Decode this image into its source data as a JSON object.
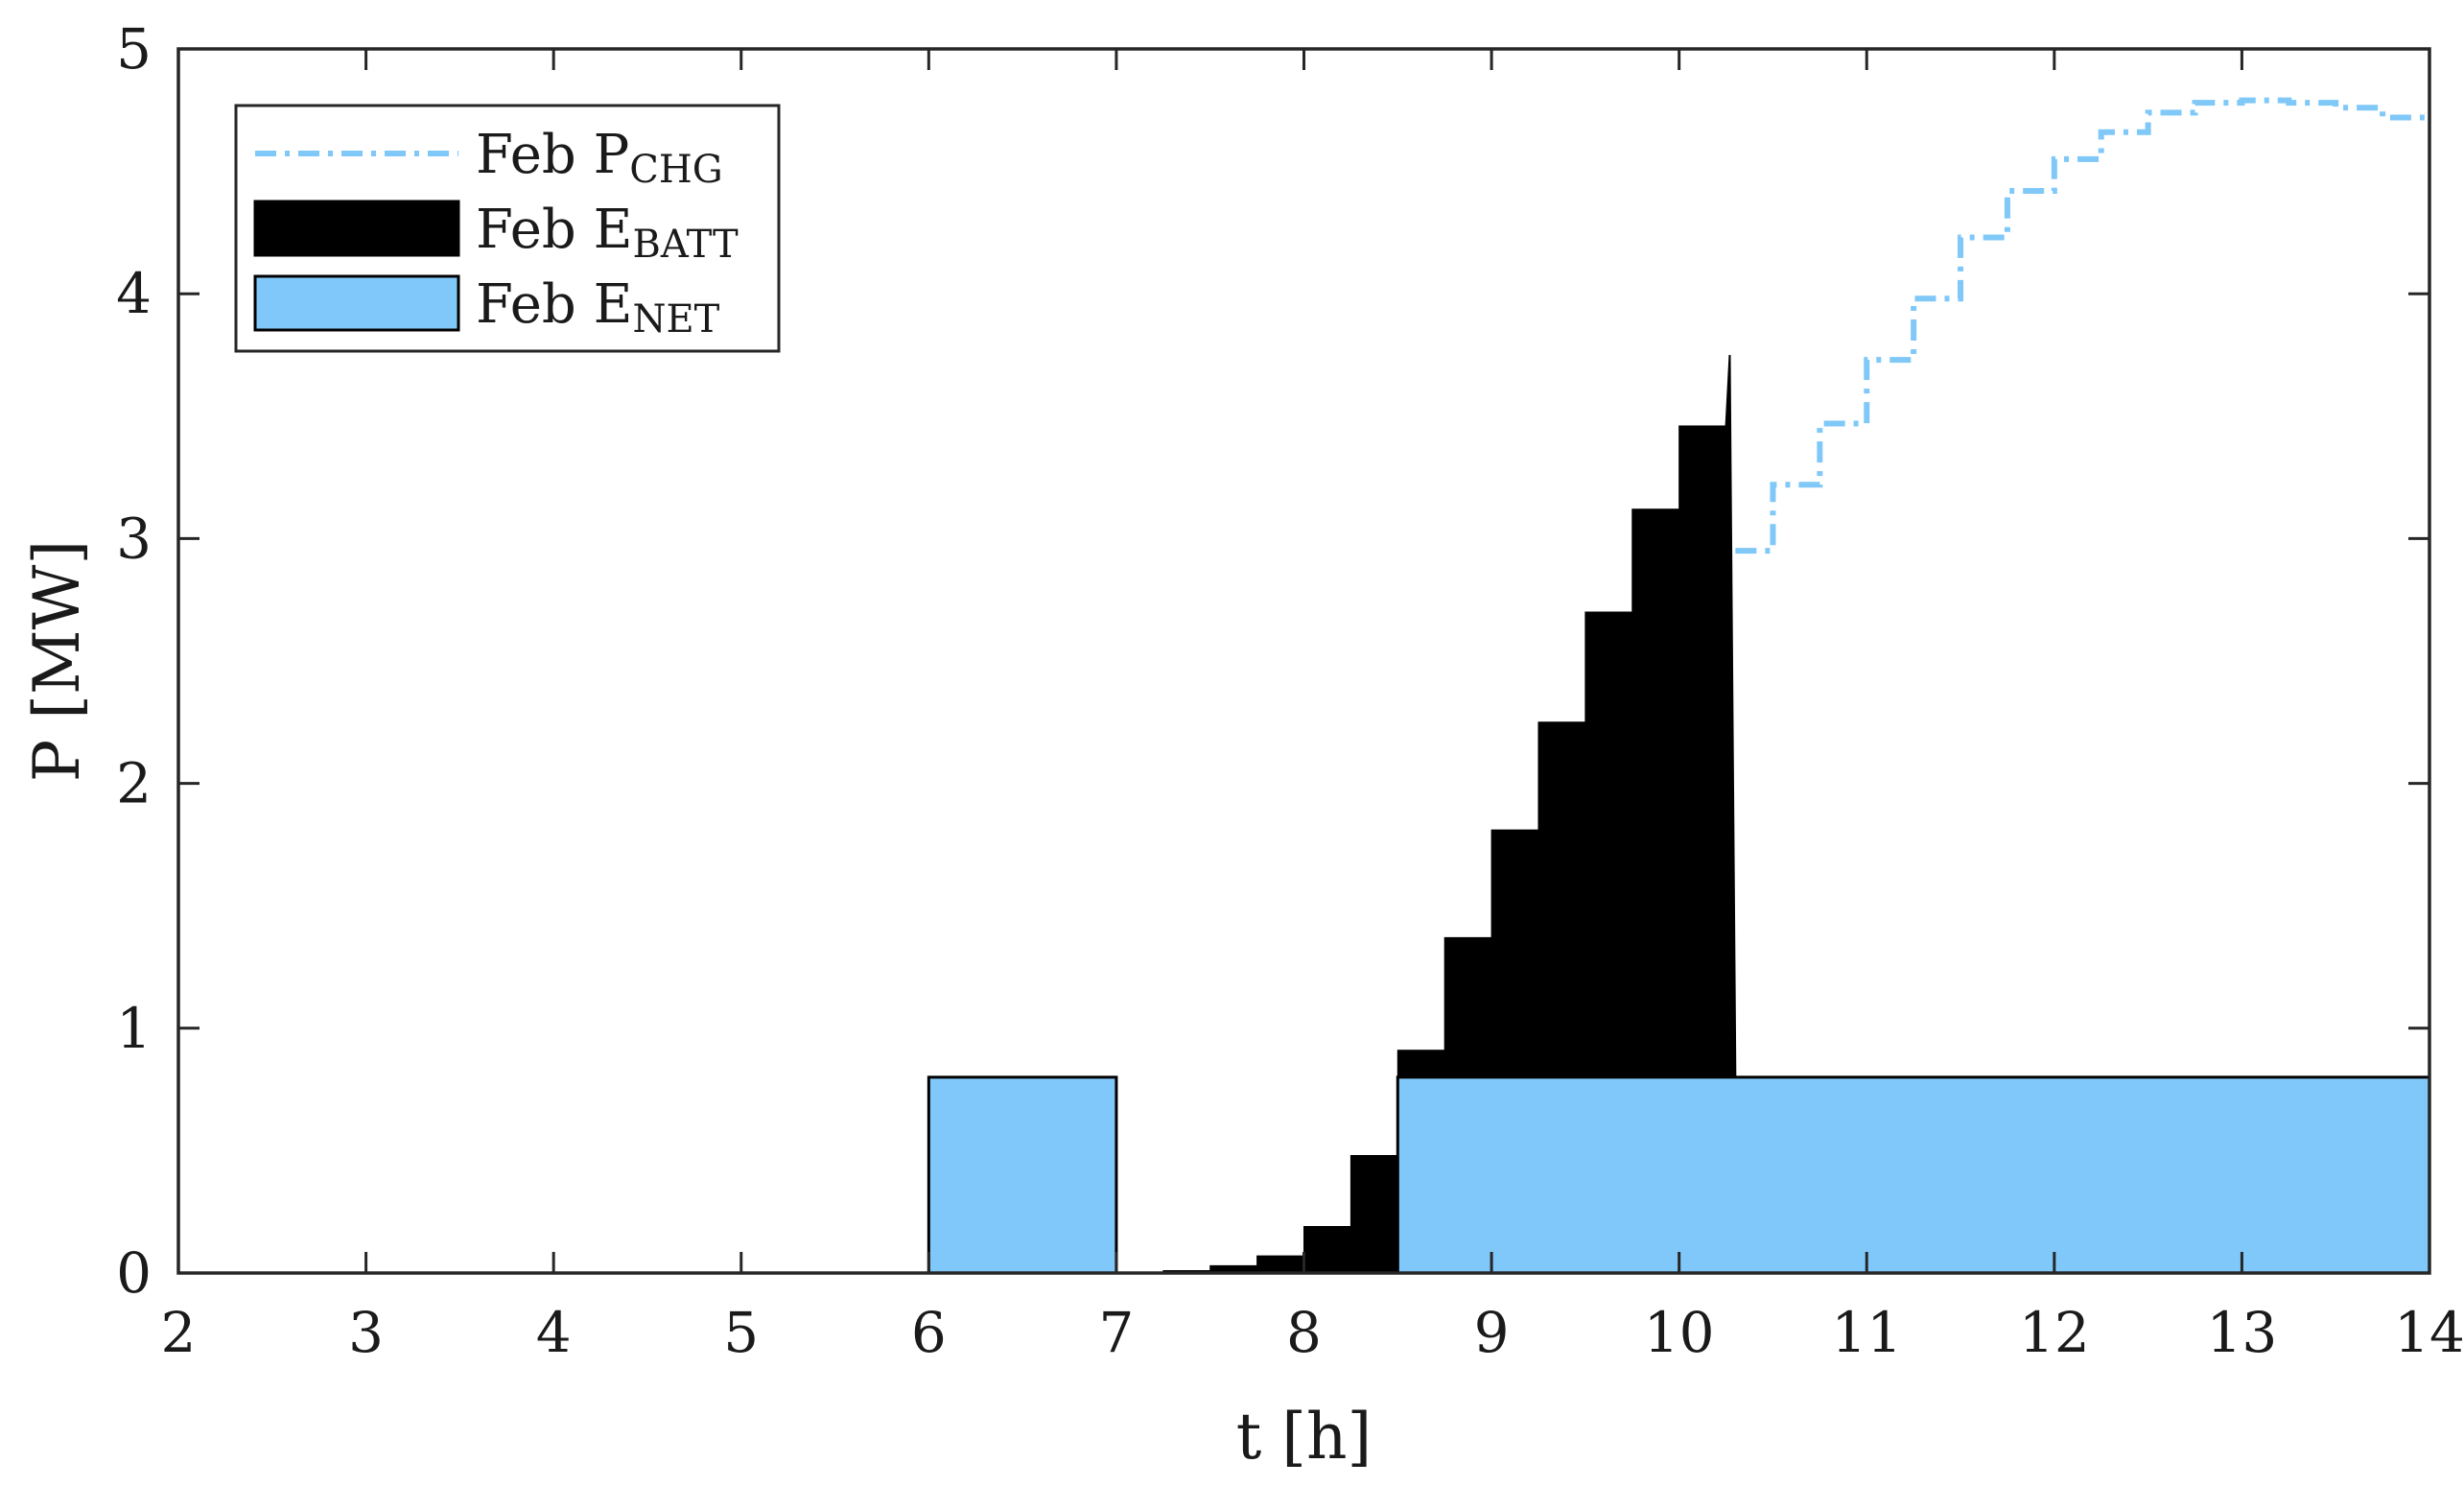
{
  "chart_data": {
    "type": "area",
    "xlabel": "t [h]",
    "ylabel": "P [MW]",
    "xlim": [
      2,
      14
    ],
    "ylim": [
      0,
      5
    ],
    "xticks": [
      "2",
      "3",
      "4",
      "5",
      "6",
      "7",
      "8",
      "9",
      "10",
      "11",
      "12",
      "13",
      "14"
    ],
    "yticks": [
      "0",
      "1",
      "2",
      "3",
      "4",
      "5"
    ],
    "grid": false,
    "legend_position": "top-left",
    "colors": {
      "pchg": "#7fc8f8",
      "ebatt": "#000000",
      "enet": "#80c8fa",
      "axis": "#262626"
    },
    "legend": [
      {
        "key": "pchg",
        "main": "Feb P",
        "sub": "CHG",
        "style": "dash-dot line"
      },
      {
        "key": "ebatt",
        "main": "Feb E",
        "sub": "BATT",
        "style": "filled area"
      },
      {
        "key": "enet",
        "main": "Feb E",
        "sub": "NET",
        "style": "filled area"
      }
    ],
    "series": {
      "ebatt": {
        "step_width_h": 0.25,
        "steps": [
          [
            7.0,
            0.0
          ],
          [
            7.25,
            0.01
          ],
          [
            7.5,
            0.03
          ],
          [
            7.75,
            0.07
          ],
          [
            8.0,
            0.19
          ],
          [
            8.25,
            0.48
          ],
          [
            8.5,
            0.91
          ],
          [
            8.75,
            1.37
          ],
          [
            9.0,
            1.81
          ],
          [
            9.25,
            2.25
          ],
          [
            9.5,
            2.7
          ],
          [
            9.75,
            3.12
          ],
          [
            10.0,
            3.46
          ]
        ],
        "end_x": 10.25,
        "peak": [
          10.27,
          3.75
        ],
        "drop_x": 10.3
      },
      "enet": {
        "blocks": [
          {
            "x_start": 6.0,
            "x_end": 7.0,
            "value": 0.8
          },
          {
            "x_start": 8.5,
            "x_end": 14.0,
            "value": 0.8
          }
        ]
      },
      "pchg": {
        "step_width_h": 0.25,
        "steps": [
          [
            10.3,
            2.95
          ],
          [
            10.5,
            3.22
          ],
          [
            10.75,
            3.47
          ],
          [
            11.0,
            3.73
          ],
          [
            11.25,
            3.98
          ],
          [
            11.5,
            4.23
          ],
          [
            11.75,
            4.42
          ],
          [
            12.0,
            4.55
          ],
          [
            12.25,
            4.66
          ],
          [
            12.5,
            4.74
          ],
          [
            12.75,
            4.78
          ],
          [
            13.0,
            4.79
          ],
          [
            13.25,
            4.78
          ],
          [
            13.5,
            4.76
          ],
          [
            13.75,
            4.72
          ]
        ],
        "end_x": 14.0
      }
    }
  }
}
